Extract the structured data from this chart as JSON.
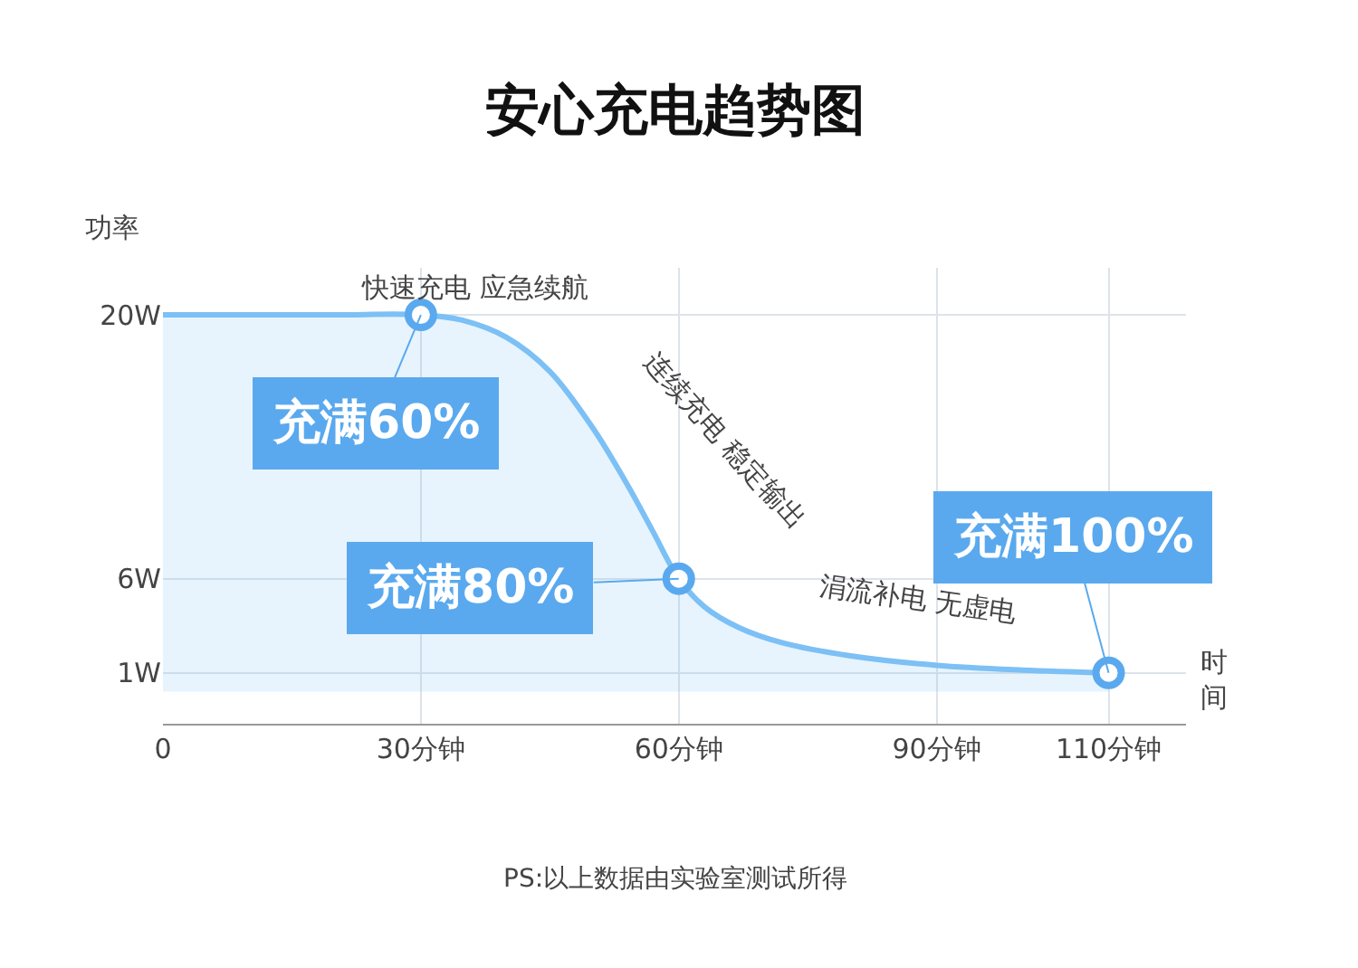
{
  "chart_data": {
    "type": "area",
    "title": "安心充电趋势图",
    "xlabel": "时间",
    "ylabel": "功率",
    "series": [
      {
        "color": "#7cc0f5",
        "x": [
          0,
          10,
          20,
          30,
          35,
          40,
          45,
          50,
          54,
          57,
          60,
          63,
          67,
          72,
          80,
          90,
          100,
          110
        ],
        "values": [
          20,
          20,
          20,
          20,
          19.7,
          18.8,
          17,
          14,
          11,
          8.5,
          6,
          4.5,
          3.4,
          2.6,
          1.9,
          1.4,
          1.15,
          1
        ]
      }
    ],
    "xlim": [
      0,
      119
    ],
    "xticks": [
      0,
      {
        "value": 30,
        "label": "30分钟"
      },
      {
        "value": 60,
        "label": "60分钟"
      },
      {
        "value": 90,
        "label": "90分钟"
      },
      {
        "value": 110,
        "label": "110分钟"
      }
    ],
    "ylim": [
      -1.7,
      22.5
    ],
    "yticks": [
      {
        "value": 1,
        "label": "1W"
      },
      {
        "value": 6,
        "label": "6W"
      },
      {
        "value": 20,
        "label": "20W"
      }
    ],
    "grid": true,
    "legend": false,
    "marker": "none",
    "line_style": "solid",
    "annotations": [
      {
        "text": "充满60%",
        "x": 30,
        "y": 20
      },
      {
        "text": "充满80%",
        "x": 60,
        "y": 6
      },
      {
        "text": "充满100%",
        "x": 110,
        "y": 1
      },
      "快速充电 应急续航",
      "连续充电 稳定输出",
      "涓流补电 无虚电",
      "PS:以上数据由实验室测试所得"
    ]
  }
}
